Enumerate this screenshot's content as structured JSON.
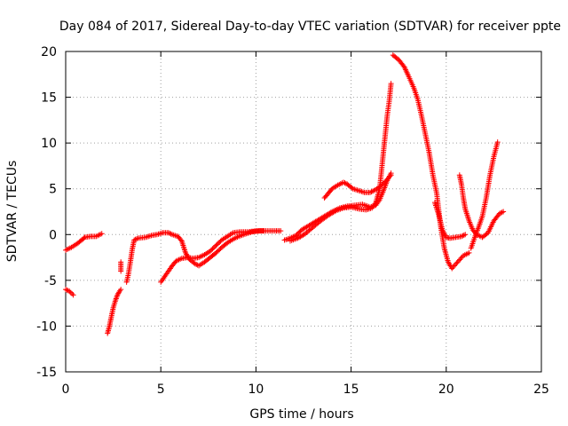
{
  "chart_data": {
    "type": "scatter",
    "title": "Day 084 of 2017, Sidereal Day-to-day VTEC variation (SDTVAR) for receiver ppte",
    "xlabel": "GPS time / hours",
    "ylabel": "SDTVAR / TECUs",
    "xlim": [
      0,
      25
    ],
    "ylim": [
      -15,
      20
    ],
    "xticks": [
      0,
      5,
      10,
      15,
      20,
      25
    ],
    "yticks": [
      -15,
      -10,
      -5,
      0,
      5,
      10,
      15,
      20
    ],
    "x_tick_labels": [
      "0",
      "5",
      "10",
      "15",
      "20",
      "25"
    ],
    "y_tick_labels": [
      "-15",
      "-10",
      "-5",
      "0",
      "5",
      "10",
      "15",
      "20"
    ],
    "grid": true,
    "marker": "plus",
    "color": "#ff0000",
    "segments": [
      {
        "points": [
          [
            0,
            -1.7
          ],
          [
            0.3,
            -1.4
          ],
          [
            0.6,
            -1.0
          ],
          [
            0.9,
            -0.5
          ],
          [
            1.0,
            -0.3
          ],
          [
            1.3,
            -0.2
          ],
          [
            1.6,
            -0.2
          ],
          [
            1.9,
            0.1
          ]
        ]
      },
      {
        "points": [
          [
            0,
            -6.0
          ],
          [
            0.2,
            -6.2
          ],
          [
            0.4,
            -6.6
          ]
        ]
      },
      {
        "points": [
          [
            2.2,
            -10.8
          ],
          [
            2.3,
            -10.0
          ],
          [
            2.4,
            -9.0
          ],
          [
            2.5,
            -8.0
          ],
          [
            2.6,
            -7.3
          ],
          [
            2.7,
            -6.7
          ],
          [
            2.8,
            -6.3
          ],
          [
            2.9,
            -6.0
          ]
        ]
      },
      {
        "points": [
          [
            2.9,
            -3.0
          ],
          [
            2.9,
            -4.0
          ]
        ]
      },
      {
        "points": [
          [
            3.2,
            -5.2
          ],
          [
            3.3,
            -4.3
          ],
          [
            3.4,
            -3.0
          ],
          [
            3.5,
            -1.6
          ],
          [
            3.6,
            -0.6
          ],
          [
            3.8,
            -0.4
          ],
          [
            4.2,
            -0.3
          ],
          [
            4.5,
            -0.1
          ],
          [
            4.8,
            0.0
          ],
          [
            5.1,
            0.2
          ],
          [
            5.4,
            0.2
          ],
          [
            5.6,
            0.0
          ],
          [
            5.9,
            -0.2
          ],
          [
            6.1,
            -0.7
          ],
          [
            6.3,
            -2.0
          ],
          [
            6.5,
            -2.7
          ],
          [
            6.8,
            -3.2
          ],
          [
            7.0,
            -3.4
          ],
          [
            7.3,
            -3.0
          ],
          [
            7.6,
            -2.5
          ],
          [
            7.9,
            -2.0
          ],
          [
            8.2,
            -1.4
          ],
          [
            8.5,
            -0.9
          ],
          [
            8.8,
            -0.5
          ],
          [
            9.1,
            -0.2
          ],
          [
            9.5,
            0.1
          ],
          [
            9.8,
            0.3
          ],
          [
            10.2,
            0.4
          ],
          [
            10.6,
            0.4
          ],
          [
            11.0,
            0.4
          ],
          [
            11.3,
            0.4
          ]
        ]
      },
      {
        "points": [
          [
            5.0,
            -5.2
          ],
          [
            5.2,
            -4.6
          ],
          [
            5.4,
            -4.0
          ],
          [
            5.6,
            -3.4
          ],
          [
            5.8,
            -2.9
          ],
          [
            6.1,
            -2.6
          ],
          [
            6.4,
            -2.5
          ],
          [
            6.7,
            -2.6
          ],
          [
            7.0,
            -2.5
          ],
          [
            7.3,
            -2.2
          ],
          [
            7.6,
            -1.8
          ],
          [
            7.9,
            -1.2
          ],
          [
            8.2,
            -0.6
          ],
          [
            8.5,
            -0.2
          ],
          [
            8.8,
            0.2
          ],
          [
            9.2,
            0.3
          ],
          [
            9.6,
            0.3
          ],
          [
            10.0,
            0.4
          ],
          [
            10.4,
            0.4
          ]
        ]
      },
      {
        "points": [
          [
            11.5,
            -0.6
          ],
          [
            11.8,
            -0.4
          ],
          [
            12.1,
            -0.1
          ],
          [
            12.4,
            0.5
          ],
          [
            12.8,
            1.0
          ],
          [
            13.2,
            1.5
          ],
          [
            13.6,
            2.0
          ],
          [
            14.0,
            2.5
          ],
          [
            14.4,
            2.9
          ],
          [
            14.8,
            3.1
          ],
          [
            15.2,
            3.2
          ],
          [
            15.6,
            3.3
          ],
          [
            16.0,
            3.0
          ],
          [
            16.3,
            3.2
          ],
          [
            16.5,
            3.8
          ],
          [
            16.7,
            4.8
          ],
          [
            16.9,
            5.9
          ],
          [
            17.1,
            6.7
          ]
        ]
      },
      {
        "points": [
          [
            11.8,
            -0.7
          ],
          [
            12.2,
            -0.4
          ],
          [
            12.6,
            0.1
          ],
          [
            13.0,
            0.8
          ],
          [
            13.4,
            1.5
          ],
          [
            13.8,
            2.1
          ],
          [
            14.2,
            2.6
          ],
          [
            14.6,
            2.9
          ],
          [
            15.0,
            3.0
          ],
          [
            15.4,
            2.8
          ],
          [
            15.8,
            2.7
          ],
          [
            16.1,
            2.9
          ],
          [
            16.3,
            3.5
          ],
          [
            16.5,
            5.0
          ],
          [
            16.6,
            7.0
          ],
          [
            16.7,
            9.0
          ],
          [
            16.8,
            11.0
          ],
          [
            16.9,
            13.0
          ],
          [
            17.0,
            14.5
          ],
          [
            17.1,
            16.5
          ]
        ]
      },
      {
        "points": [
          [
            13.6,
            4.0
          ],
          [
            13.8,
            4.5
          ],
          [
            14.0,
            5.0
          ],
          [
            14.3,
            5.4
          ],
          [
            14.6,
            5.7
          ],
          [
            14.8,
            5.5
          ],
          [
            15.1,
            5.0
          ],
          [
            15.4,
            4.8
          ],
          [
            15.7,
            4.6
          ],
          [
            16.0,
            4.6
          ],
          [
            16.2,
            4.8
          ],
          [
            16.5,
            5.2
          ],
          [
            16.8,
            5.8
          ],
          [
            17.1,
            6.5
          ]
        ]
      },
      {
        "points": [
          [
            17.2,
            19.6
          ],
          [
            17.5,
            19.1
          ],
          [
            17.8,
            18.3
          ],
          [
            18.0,
            17.4
          ],
          [
            18.3,
            16.0
          ],
          [
            18.5,
            14.8
          ],
          [
            18.7,
            13.0
          ],
          [
            18.9,
            11.0
          ],
          [
            19.1,
            9.0
          ],
          [
            19.3,
            6.5
          ],
          [
            19.5,
            4.5
          ],
          [
            19.7,
            1.0
          ],
          [
            19.9,
            -1.5
          ],
          [
            20.1,
            -3.0
          ],
          [
            20.3,
            -3.7
          ],
          [
            20.6,
            -3.0
          ],
          [
            20.9,
            -2.3
          ],
          [
            21.2,
            -2.0
          ]
        ]
      },
      {
        "points": [
          [
            19.4,
            3.5
          ],
          [
            19.6,
            2.2
          ],
          [
            19.8,
            0.5
          ],
          [
            20.0,
            -0.3
          ],
          [
            20.2,
            -0.4
          ],
          [
            20.5,
            -0.3
          ],
          [
            20.8,
            -0.2
          ],
          [
            21.0,
            0.0
          ]
        ]
      },
      {
        "points": [
          [
            20.7,
            6.5
          ],
          [
            20.8,
            5.5
          ],
          [
            20.9,
            4.0
          ],
          [
            21.0,
            2.8
          ],
          [
            21.2,
            1.5
          ],
          [
            21.4,
            0.5
          ],
          [
            21.6,
            0.0
          ],
          [
            21.9,
            -0.3
          ],
          [
            22.2,
            0.2
          ],
          [
            22.5,
            1.5
          ],
          [
            22.8,
            2.3
          ],
          [
            23.0,
            2.5
          ]
        ]
      },
      {
        "points": [
          [
            21.3,
            -1.5
          ],
          [
            21.5,
            -0.3
          ],
          [
            21.7,
            0.8
          ],
          [
            21.9,
            2.0
          ],
          [
            22.1,
            4.0
          ],
          [
            22.3,
            6.5
          ],
          [
            22.5,
            8.5
          ],
          [
            22.7,
            10.1
          ]
        ]
      }
    ]
  }
}
